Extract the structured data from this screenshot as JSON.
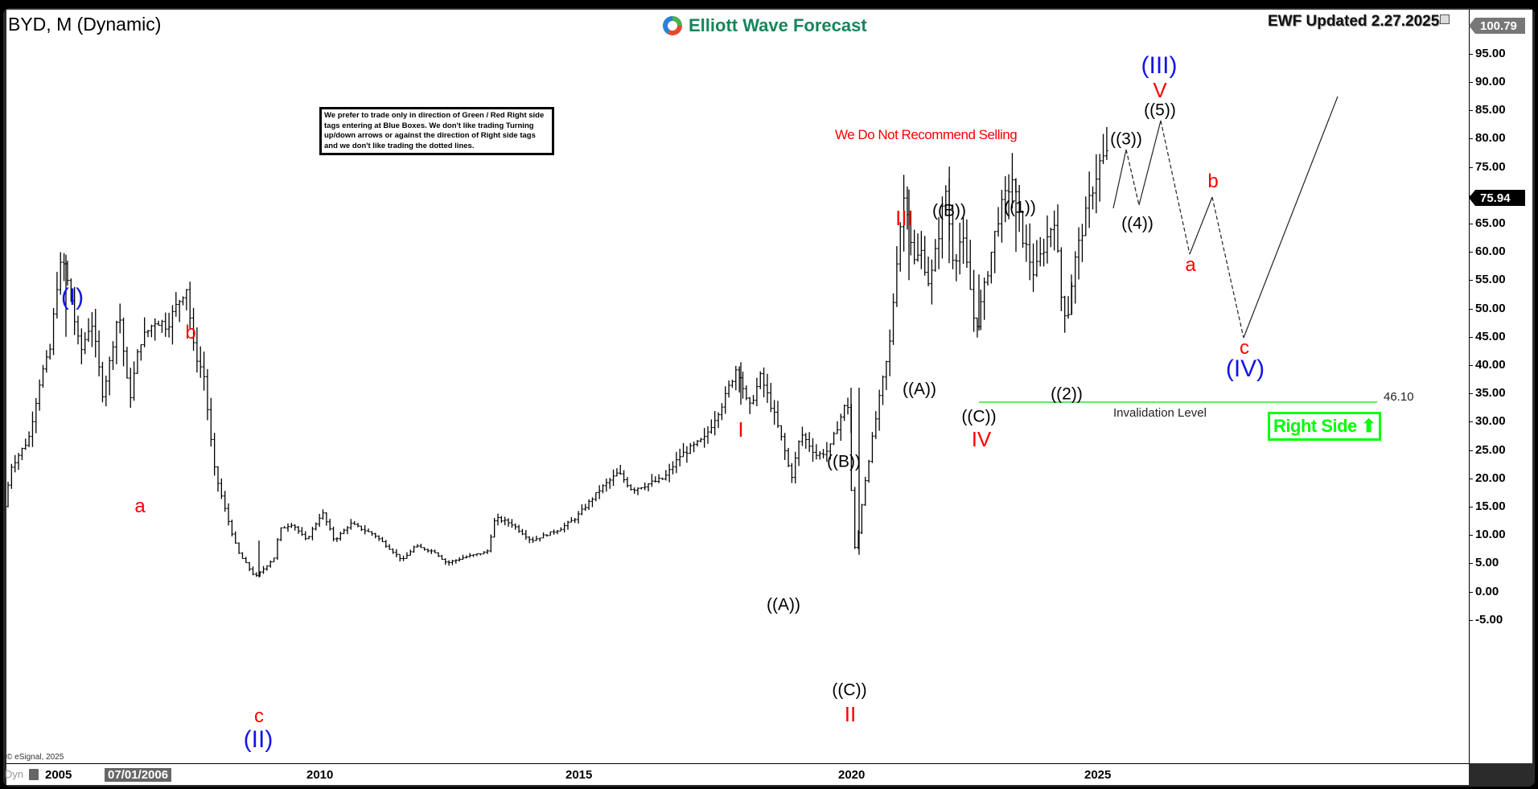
{
  "chart_header": {
    "symbol_title": "BYD, M (Dynamic)",
    "brand": "Elliott Wave Forecast",
    "updated": "EWF Updated 2.27.2025",
    "disclaimer": "We prefer to trade only in direction of Green / Red Right side tags entering at Blue Boxes. We don't like trading Turning up/down arrows or against the direction of Right side tags and we don't like trading the dotted lines.",
    "recommendation": "We Do Not Recommend Selling",
    "copyright": "© eSignal, 2025"
  },
  "price_badges": {
    "high": "100.79",
    "last": "75.94"
  },
  "invalidation": {
    "label": "Invalidation Level",
    "value": "46.10",
    "color": "#33dd33"
  },
  "right_side_tag": {
    "label": "Right Side",
    "arrow": "⬆",
    "color": "#00ff00"
  },
  "xaxis": {
    "dyn_label": "Dyn",
    "cursor_date": "07/01/2006",
    "ticks": [
      "2005",
      "2010",
      "2015",
      "2020",
      "2025"
    ]
  },
  "yaxis": {
    "ticks": [
      "100.00",
      "95.00",
      "90.00",
      "85.00",
      "80.00",
      "75.00",
      "70.00",
      "65.00",
      "60.00",
      "55.00",
      "50.00",
      "45.00",
      "40.00",
      "35.00",
      "30.00",
      "25.00",
      "20.00",
      "15.00",
      "10.00",
      "5.00",
      "0.00",
      "-5.00"
    ]
  },
  "wave_labels": {
    "w_I_blue": "(I)",
    "w_a1": "a",
    "w_b1": "b",
    "w_c1": "c",
    "w_II_blue": "(II)",
    "w_I_red": "I",
    "w_A1": "((A))",
    "w_B1": "((B))",
    "w_C1": "((C))",
    "w_II_red": "II",
    "w_III_red": "III",
    "w_A2": "((A))",
    "w_B2": "((B))",
    "w_C2": "((C))",
    "w_IV_red": "IV",
    "w_1": "((1))",
    "w_2": "((2))",
    "w_3": "((3))",
    "w_4": "((4))",
    "w_5": "((5))",
    "w_V_red": "V",
    "w_III_blue": "(III)",
    "w_a2": "a",
    "w_b2": "b",
    "w_c2": "c",
    "w_IV_blue": "(IV)"
  },
  "chart_data": {
    "type": "ohlc-bar",
    "title": "BYD, M (Dynamic)",
    "xlabel": "",
    "ylabel": "Price",
    "ylim": [
      -5,
      100.79
    ],
    "x_ticks": [
      "2005",
      "2010",
      "2015",
      "2020",
      "2025"
    ],
    "grid": false,
    "last_price": 75.94,
    "period_high_marker": 100.79,
    "invalidation_level": 46.1,
    "key_pivots": [
      {
        "label": "(I)",
        "date": "2005-06",
        "price": 59
      },
      {
        "label": "a",
        "date": "2006-06",
        "price": 33.5
      },
      {
        "label": "b",
        "date": "2007-09",
        "price": 54
      },
      {
        "label": "c / (II)",
        "date": "2008-10",
        "price": 2.5
      },
      {
        "label": "I",
        "date": "2018-01",
        "price": 40.5
      },
      {
        "label": "((A))",
        "date": "2019-01",
        "price": 19
      },
      {
        "label": "((B))",
        "date": "2020-01",
        "price": 36
      },
      {
        "label": "((C)) / II",
        "date": "2020-03",
        "price": 6.5
      },
      {
        "label": "III",
        "date": "2021-06",
        "price": 71
      },
      {
        "label": "((A))",
        "date": "2021-10",
        "price": 50
      },
      {
        "label": "((B))",
        "date": "2022-06",
        "price": 73
      },
      {
        "label": "((C)) / IV",
        "date": "2022-10",
        "price": 46.1
      },
      {
        "label": "((1))",
        "date": "2023-07",
        "price": 73
      },
      {
        "label": "((2))",
        "date": "2024-01",
        "price": 49
      },
      {
        "label": "((3)) projected",
        "date": "2025-06",
        "price": 83
      },
      {
        "label": "((4)) projected",
        "date": "2025-10",
        "price": 74.5
      },
      {
        "label": "((5)) / V / (III) projected",
        "date": "2026-03",
        "price": 87.5
      },
      {
        "label": "a projected",
        "date": "2026-10",
        "price": 67.5
      },
      {
        "label": "b projected",
        "date": "2027-03",
        "price": 76
      },
      {
        "label": "c / (IV) projected",
        "date": "2027-10",
        "price": 55.5
      },
      {
        "label": "projection end",
        "date": "2029-06",
        "price": 91
      }
    ]
  }
}
